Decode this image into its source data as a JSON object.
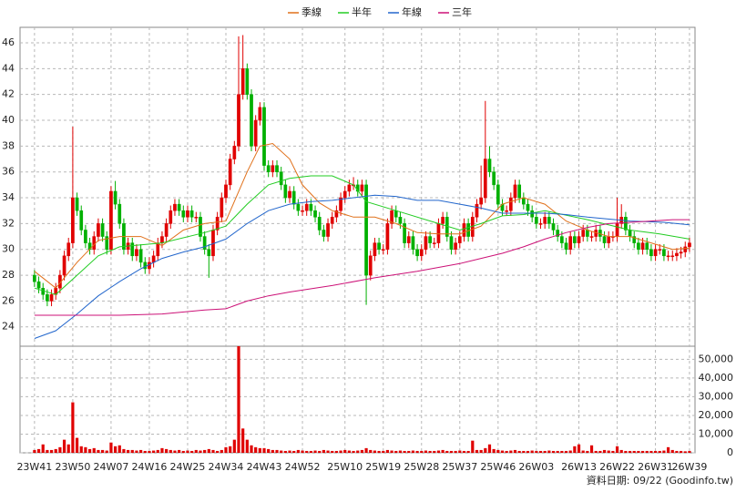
{
  "chart_data": {
    "type": "candlestick",
    "footer": "資料日期: 09/22 (Goodinfo.tw)",
    "legend": "top",
    "grid": true,
    "up_color": "#e00000",
    "down_color": "#00b000",
    "volume_color": "#e00000",
    "xlim": [
      -3.4,
      155.3
    ],
    "ylim": [
      22.5,
      47.2
    ],
    "y2lim": [
      0,
      57000
    ],
    "yticks": [
      24,
      26,
      28,
      30,
      32,
      34,
      36,
      38,
      40,
      42,
      44,
      46
    ],
    "y2ticks": [
      0,
      {
        "value": 10000,
        "label": "10,000"
      },
      {
        "value": 20000,
        "label": "20,000"
      },
      {
        "value": 30000,
        "label": "30,000"
      },
      {
        "value": 40000,
        "label": "40,000"
      },
      {
        "value": 50000,
        "label": "50,000"
      }
    ],
    "xticks": [
      {
        "value": 0,
        "label": "23W41"
      },
      {
        "value": 9,
        "label": "23W50"
      },
      {
        "value": 18,
        "label": "24W07"
      },
      {
        "value": 27,
        "label": "24W16"
      },
      {
        "value": 36,
        "label": "24W25"
      },
      {
        "value": 45,
        "label": "24W34"
      },
      {
        "value": 54,
        "label": "24W43"
      },
      {
        "value": 63,
        "label": "24W52"
      },
      {
        "value": 73,
        "label": "25W10"
      },
      {
        "value": 82,
        "label": "25W19"
      },
      {
        "value": 91,
        "label": "25W28"
      },
      {
        "value": 100,
        "label": "25W37"
      },
      {
        "value": 109,
        "label": "25W46"
      },
      {
        "value": 118,
        "label": "26W03"
      },
      {
        "value": 128,
        "label": "26W13"
      },
      {
        "value": 137,
        "label": "26W22"
      },
      {
        "value": 146,
        "label": "26W31"
      },
      {
        "value": 154,
        "label": "26W39"
      }
    ],
    "x": [
      0,
      1,
      2,
      3,
      4,
      5,
      6,
      7,
      8,
      9,
      10,
      11,
      12,
      13,
      14,
      15,
      16,
      17,
      18,
      19,
      20,
      21,
      22,
      23,
      24,
      25,
      26,
      27,
      28,
      29,
      30,
      31,
      32,
      33,
      34,
      35,
      36,
      37,
      38,
      39,
      40,
      41,
      42,
      43,
      44,
      45,
      46,
      47,
      48,
      49,
      50,
      51,
      52,
      53,
      54,
      55,
      56,
      57,
      58,
      59,
      60,
      61,
      62,
      63,
      64,
      65,
      66,
      67,
      68,
      69,
      70,
      71,
      72,
      73,
      74,
      75,
      76,
      77,
      78,
      79,
      80,
      81,
      82,
      83,
      84,
      85,
      86,
      87,
      88,
      89,
      90,
      91,
      92,
      93,
      94,
      95,
      96,
      97,
      98,
      99,
      100,
      101,
      102,
      103,
      104,
      105,
      106,
      107,
      108,
      109,
      110,
      111,
      112,
      113,
      114,
      115,
      116,
      117,
      118,
      119,
      120,
      121,
      122,
      123,
      124,
      125,
      126,
      127,
      128,
      129,
      130,
      131,
      132,
      133,
      134,
      135,
      136,
      137,
      138,
      139,
      140,
      141,
      142,
      143,
      144,
      145,
      146,
      147,
      148,
      149,
      150,
      151,
      152,
      153,
      154
    ],
    "open": [
      28,
      27.5,
      27,
      26.5,
      26,
      26.5,
      27,
      28,
      29.5,
      30.5,
      34,
      33,
      31.5,
      30.5,
      30,
      31,
      32,
      31,
      30,
      34.5,
      33.5,
      32,
      30,
      30.5,
      29.5,
      30,
      29,
      28.5,
      29,
      29.5,
      30.5,
      31,
      32,
      33,
      33.5,
      33,
      32.5,
      33,
      32.5,
      32.5,
      31,
      30,
      29.5,
      31.5,
      32.5,
      34,
      35,
      37,
      38,
      42,
      44,
      42,
      38,
      40,
      41,
      36.5,
      36,
      36.5,
      36,
      35,
      34,
      34.5,
      33.5,
      33,
      33,
      33.5,
      33,
      32.5,
      31.5,
      31,
      32,
      32.5,
      33,
      34,
      34.5,
      35,
      35,
      34.5,
      35,
      28,
      29.5,
      30.5,
      30,
      30,
      32,
      33,
      32.5,
      32,
      30.5,
      31,
      30,
      29.5,
      30,
      31,
      30.5,
      30.5,
      32,
      32.5,
      31,
      30,
      30.5,
      31,
      32,
      31,
      32.5,
      33.5,
      34,
      37,
      36,
      35,
      33.5,
      33,
      33,
      34,
      35,
      34,
      33.5,
      33,
      32.5,
      32,
      32,
      32.5,
      32,
      31.5,
      31,
      30.5,
      30,
      31,
      30.5,
      31,
      31.5,
      31,
      31,
      31.5,
      31,
      30.5,
      31,
      31,
      32,
      32.5,
      31.5,
      31,
      30.5,
      30,
      30.5,
      30,
      29.5,
      30,
      30,
      29.5,
      29.5,
      29.5,
      29.7,
      29.8,
      30.2
    ],
    "high": [
      28.4,
      27.9,
      27.4,
      26.9,
      26.9,
      27.4,
      28.4,
      29.9,
      30.9,
      39.5,
      34.4,
      33.4,
      31.9,
      30.9,
      31.4,
      32.4,
      32.4,
      31.4,
      34.9,
      35.3,
      33.9,
      32.4,
      30.9,
      30.9,
      30.4,
      30.4,
      29.4,
      29.4,
      29.9,
      30.9,
      31.4,
      32.4,
      33.4,
      33.9,
      33.9,
      33.4,
      33.4,
      33.4,
      32.9,
      32.9,
      31.4,
      30.4,
      31.9,
      32.9,
      34.4,
      35.4,
      37.4,
      38.4,
      46.5,
      46.6,
      44.4,
      42.4,
      40.4,
      41.4,
      41.4,
      36.9,
      36.9,
      36.9,
      36.4,
      35.4,
      34.9,
      34.9,
      33.9,
      33.4,
      33.9,
      33.9,
      33.4,
      32.9,
      31.9,
      32.4,
      32.9,
      33.4,
      34.4,
      34.9,
      35.4,
      35.6,
      35.4,
      35.4,
      35.4,
      29.9,
      30.9,
      30.9,
      30.4,
      32.4,
      33.4,
      33.4,
      32.9,
      32.4,
      31.4,
      31.4,
      30.4,
      30.4,
      31.4,
      31.4,
      30.9,
      32.4,
      32.9,
      32.9,
      31.4,
      30.9,
      31.4,
      32.4,
      32.4,
      32.9,
      33.9,
      36.5,
      41.5,
      38,
      36.4,
      35.4,
      33.9,
      33.4,
      34.4,
      35.4,
      35.4,
      34.4,
      33.9,
      33.4,
      32.9,
      32.4,
      32.9,
      32.9,
      32.4,
      31.9,
      31.4,
      30.9,
      31.4,
      31.4,
      31.4,
      31.9,
      31.9,
      31.4,
      31.9,
      31.9,
      31.4,
      31.4,
      31.4,
      34,
      33.5,
      32.9,
      31.9,
      31.4,
      30.9,
      30.9,
      30.9,
      30.4,
      30.4,
      30.4,
      30.4,
      29.9,
      29.9,
      30.1,
      30.2,
      30.6,
      30.9
    ],
    "low": [
      27.1,
      26.6,
      26.1,
      25.6,
      25.6,
      26.1,
      26.6,
      27.6,
      29.1,
      30.1,
      32.6,
      31.1,
      30.1,
      29.6,
      29.6,
      30.6,
      30.6,
      29.6,
      29.6,
      33.1,
      31.6,
      29.6,
      29.6,
      29.1,
      29.1,
      28.6,
      28.1,
      28.1,
      28.6,
      29.1,
      30.1,
      30.6,
      31.6,
      32.6,
      32.6,
      32.1,
      32.1,
      32.1,
      32.1,
      30.6,
      29.6,
      27.8,
      29.1,
      31.1,
      32.1,
      33.6,
      34.6,
      36.6,
      37.6,
      41.6,
      41.6,
      37.6,
      37.6,
      39.6,
      36.1,
      35.6,
      35.6,
      35.6,
      34.6,
      33.6,
      33.6,
      33.1,
      32.6,
      32.6,
      32.6,
      32.6,
      32.1,
      31.1,
      30.6,
      30.6,
      31.6,
      32.1,
      32.6,
      33.6,
      34.1,
      34.6,
      34.1,
      34.1,
      25.7,
      27.6,
      29.1,
      29.6,
      29.6,
      29.6,
      31.6,
      32.1,
      31.6,
      30.1,
      30.1,
      29.6,
      29.1,
      29.1,
      29.6,
      30.1,
      30.1,
      30.1,
      31.6,
      30.6,
      29.6,
      29.6,
      30.1,
      30.6,
      30.6,
      30.6,
      32.1,
      33.1,
      33.6,
      35.6,
      34.6,
      33.1,
      32.6,
      32.6,
      32.6,
      33.6,
      33.6,
      33.1,
      32.6,
      32.1,
      31.6,
      31.6,
      31.6,
      31.6,
      31.1,
      30.6,
      30.1,
      29.6,
      29.6,
      30.1,
      30.1,
      30.6,
      30.6,
      30.6,
      30.6,
      30.6,
      30.1,
      30.1,
      30.6,
      30.6,
      31.6,
      31.1,
      30.6,
      30.1,
      29.6,
      29.6,
      29.6,
      29.1,
      29.1,
      29.6,
      29.1,
      29.1,
      29.1,
      29.1,
      29.3,
      29.4,
      29.8
    ],
    "close": [
      27.5,
      27,
      26.5,
      26,
      26.5,
      27,
      28,
      29.5,
      30.5,
      34,
      33,
      31.5,
      30.5,
      30,
      31,
      32,
      31,
      30,
      34.5,
      33.5,
      32,
      30,
      30.5,
      29.5,
      30,
      29,
      28.5,
      29,
      29.5,
      30.5,
      31,
      32,
      33,
      33.5,
      33,
      32.5,
      33,
      32.5,
      32.5,
      31,
      30,
      29.5,
      31.5,
      32.5,
      34,
      35,
      37,
      38,
      42,
      44,
      42,
      38,
      40,
      41,
      36.5,
      36,
      36.5,
      36,
      35,
      34,
      34.5,
      33.5,
      33,
      33,
      33.5,
      33,
      32.5,
      31.5,
      31,
      32,
      32.5,
      33,
      34,
      34.5,
      35,
      35,
      34.5,
      35,
      28,
      29.5,
      30.5,
      30,
      30,
      32,
      33,
      32.5,
      32,
      30.5,
      31,
      30,
      29.5,
      30,
      31,
      30.5,
      30.5,
      32,
      32.5,
      31,
      30,
      30.5,
      31,
      32,
      31,
      32.5,
      33.5,
      34,
      37,
      36,
      35,
      33.5,
      33,
      33,
      34,
      35,
      34,
      33.5,
      33,
      32.5,
      32,
      32,
      32.5,
      32,
      31.5,
      31,
      30.5,
      30,
      31,
      30.5,
      31,
      31.5,
      31,
      31,
      31.5,
      31,
      30.5,
      31,
      31,
      32,
      32.5,
      31.5,
      31,
      30.5,
      30,
      30.5,
      30,
      29.5,
      30,
      30,
      29.5,
      29.5,
      29.5,
      29.7,
      29.8,
      30.2,
      30.5
    ],
    "volume": [
      1500,
      2000,
      4500,
      1500,
      1500,
      2000,
      3000,
      7000,
      4500,
      27000,
      8000,
      3500,
      3000,
      2000,
      2500,
      1500,
      1500,
      1200,
      5500,
      3500,
      4000,
      2000,
      1500,
      1500,
      1200,
      1500,
      1000,
      1000,
      1200,
      1500,
      2500,
      2000,
      1500,
      1200,
      1500,
      1000,
      1200,
      1000,
      1500,
      1200,
      1500,
      2000,
      1500,
      1000,
      1500,
      3000,
      3500,
      7000,
      57000,
      13000,
      7000,
      4000,
      3000,
      2500,
      2500,
      2000,
      1500,
      1500,
      1200,
      1000,
      1200,
      1000,
      1500,
      1200,
      1000,
      1000,
      1200,
      1000,
      1500,
      1200,
      1000,
      1000,
      1200,
      1500,
      1200,
      1000,
      1200,
      1500,
      2500,
      1500,
      1200,
      1000,
      1000,
      1500,
      1200,
      1000,
      1200,
      1000,
      1000,
      1200,
      1000,
      1000,
      1200,
      1000,
      1000,
      1200,
      1500,
      1000,
      1000,
      1000,
      1200,
      1000,
      1000,
      6500,
      1500,
      1500,
      2500,
      4500,
      2000,
      1500,
      1200,
      1000,
      1200,
      1500,
      1000,
      1000,
      1000,
      1200,
      1000,
      1000,
      1000,
      1200,
      1000,
      1000,
      1000,
      1000,
      1200,
      3500,
      4500,
      1200,
      1000,
      4000,
      1000,
      1000,
      1500,
      1200,
      1000,
      3500,
      1500,
      1000,
      1000,
      1000,
      1000,
      1000,
      1000,
      1000,
      1000,
      1000,
      1200,
      3000,
      1500,
      1000,
      1000,
      800,
      1000
    ],
    "series": [
      {
        "name": "季線",
        "color": "#e0701a",
        "x": [
          0,
          5,
          10,
          15,
          20,
          25,
          30,
          35,
          40,
          45,
          50,
          53,
          56,
          60,
          63,
          67,
          70,
          75,
          80,
          85,
          90,
          95,
          100,
          105,
          110,
          115,
          120,
          125,
          130,
          135,
          140,
          145,
          150,
          154
        ],
        "values": [
          28.3,
          27,
          29,
          30.7,
          31,
          31,
          30.3,
          31.5,
          32,
          32.2,
          36,
          38,
          38.2,
          37,
          35,
          33.6,
          33,
          32.5,
          32.5,
          32,
          31.3,
          31.2,
          31.2,
          31.8,
          33.5,
          34,
          33.5,
          32.2,
          31.5,
          31,
          31,
          30.5,
          30,
          30.1
        ]
      },
      {
        "name": "半年",
        "color": "#22cc22",
        "x": [
          0,
          5,
          10,
          15,
          20,
          30,
          40,
          45,
          50,
          55,
          60,
          65,
          70,
          75,
          78,
          85,
          95,
          100,
          105,
          110,
          115,
          120,
          130,
          140,
          147,
          154
        ],
        "values": [
          27,
          26.5,
          28,
          29.5,
          30.2,
          30.5,
          31.3,
          31.8,
          33.5,
          35,
          35.5,
          35.7,
          35.7,
          35,
          33.7,
          33,
          32,
          31.5,
          32,
          32.6,
          32.7,
          33,
          32.3,
          31.5,
          31.2,
          30.8
        ]
      },
      {
        "name": "年線",
        "color": "#2266cc",
        "x": [
          0,
          5,
          10,
          15,
          20,
          25,
          30,
          35,
          40,
          45,
          50,
          55,
          60,
          65,
          70,
          75,
          80,
          85,
          90,
          95,
          100,
          105,
          110,
          115,
          120,
          125,
          130,
          140,
          148,
          154
        ],
        "values": [
          23.1,
          23.7,
          25,
          26.4,
          27.5,
          28.5,
          29.3,
          29.8,
          30.2,
          30.8,
          32,
          33,
          33.5,
          33.7,
          33.8,
          34,
          34.2,
          34.1,
          33.8,
          33.8,
          33.5,
          33.2,
          32.8,
          32.8,
          32.8,
          32.7,
          32.5,
          32.2,
          32.1,
          31.9
        ]
      },
      {
        "name": "三年",
        "color": "#cc1177",
        "x": [
          0,
          10,
          20,
          30,
          40,
          45,
          50,
          55,
          60,
          70,
          80,
          90,
          100,
          105,
          110,
          115,
          120,
          125,
          130,
          135,
          140,
          145,
          150,
          154
        ],
        "values": [
          24.9,
          24.9,
          24.9,
          25,
          25.3,
          25.4,
          26,
          26.4,
          26.7,
          27.2,
          27.8,
          28.3,
          28.9,
          29.3,
          29.7,
          30.2,
          30.8,
          31.3,
          31.7,
          32,
          32.1,
          32.2,
          32.3,
          32.3
        ]
      }
    ]
  }
}
